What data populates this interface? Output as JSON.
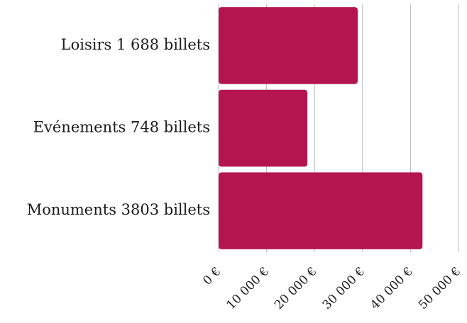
{
  "chart_data": {
    "type": "bar",
    "orientation": "horizontal",
    "categories": [
      "Loisirs 1 688 billets",
      "Evénements 748 billets",
      "Monuments 3803 billets"
    ],
    "values": [
      29000,
      18500,
      42500
    ],
    "x_ticks": [
      "0 €",
      "10 000 €",
      "20 000 €",
      "30 000 €",
      "40 000 €",
      "50 000 €"
    ],
    "xlim": [
      0,
      50000
    ],
    "grid": true,
    "bar_color": "#b5154f"
  }
}
